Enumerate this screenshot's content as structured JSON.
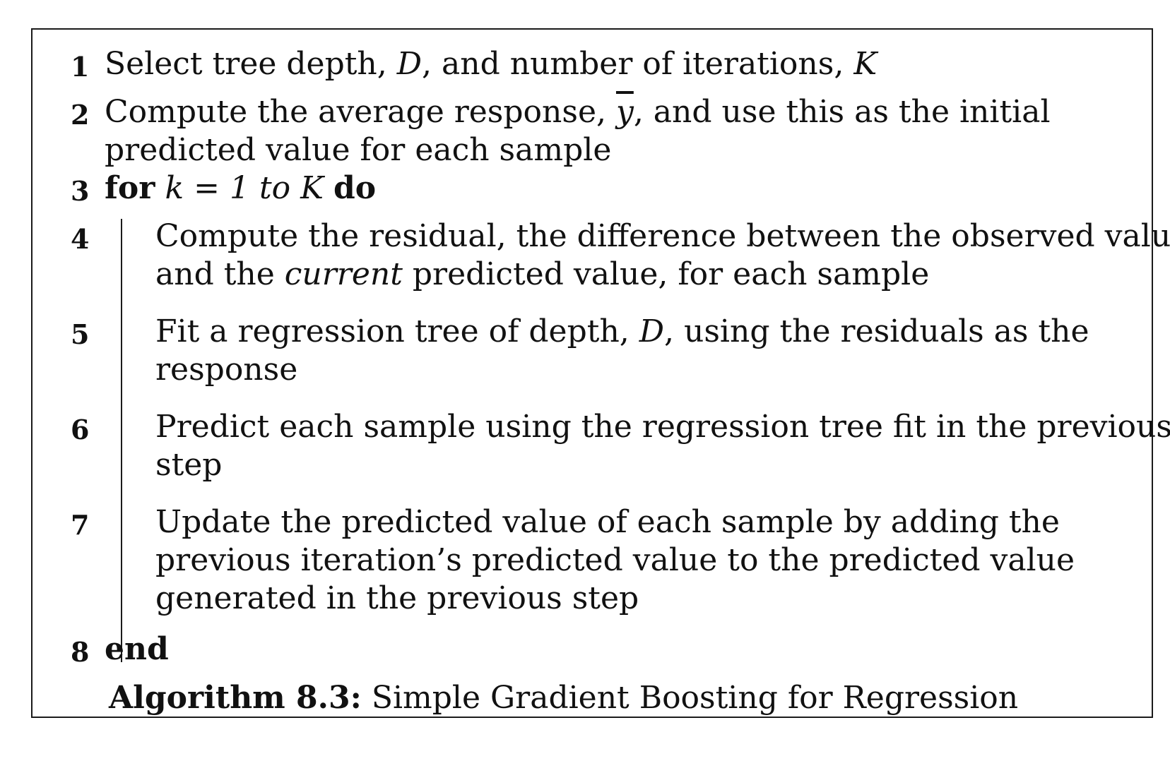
{
  "lines": [
    {
      "num": "1",
      "parts": [
        "Select tree depth, ",
        "D",
        ", and number of iterations, ",
        "K"
      ]
    },
    {
      "num": "2",
      "a": [
        "Compute the average response, ",
        "y",
        ", and use this as the initial"
      ],
      "b": "predicted value for each sample"
    },
    {
      "num": "3",
      "kw_for": "for",
      "cond": "k",
      "eq": " = ",
      "cond2": "1 to K",
      "kw_do": "do"
    },
    {
      "num": "4",
      "a": "Compute the residual, the difference between the observed value",
      "b_pre": "and the ",
      "b_em": "current",
      "b_post": " predicted value, for each sample"
    },
    {
      "num": "5",
      "a_pre": "Fit a regression tree of depth, ",
      "a_em": "D",
      "a_post": ", using the residuals as the",
      "b": "response"
    },
    {
      "num": "6",
      "a": "Predict each sample using the regression tree fit in the previous",
      "b": "step"
    },
    {
      "num": "7",
      "a": "Update the predicted value of each sample by adding the",
      "b": "previous iteration’s predicted value to the predicted value",
      "c": "generated in the previous step"
    },
    {
      "num": "8",
      "kw_end": "end"
    }
  ],
  "caption": {
    "label": "Algorithm 8.3:",
    "title": " Simple Gradient Boosting for Regression"
  }
}
